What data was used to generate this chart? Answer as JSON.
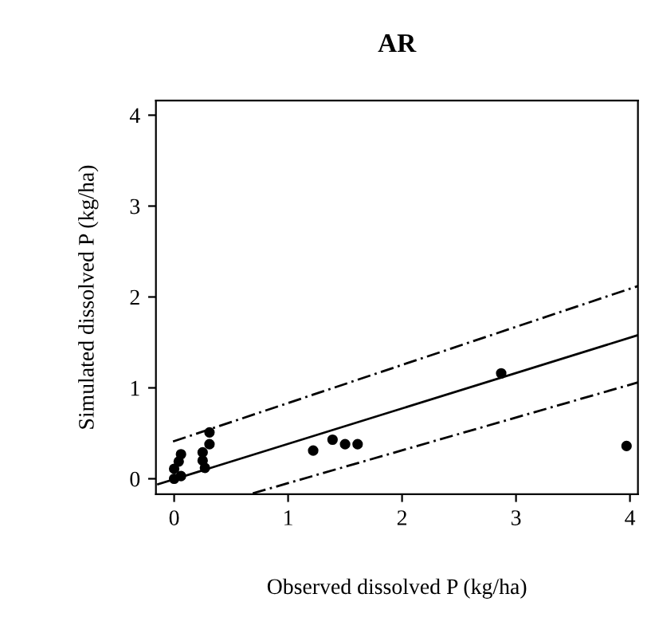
{
  "chart_data": {
    "type": "scatter",
    "title": "AR",
    "xlabel": "Observed dissolved P (kg/ha)",
    "ylabel": "Simulated dissolved P (kg/ha)",
    "xlim": [
      -0.16,
      4.07
    ],
    "ylim": [
      -0.17,
      4.16
    ],
    "xticks": [
      0,
      1,
      2,
      3,
      4
    ],
    "yticks": [
      0,
      1,
      2,
      3,
      4
    ],
    "grid": false,
    "legend": false,
    "marker": "circle",
    "series": [
      {
        "color": "#000000",
        "x": [
          0.0,
          0.06,
          0.0,
          0.04,
          0.06,
          0.31,
          0.31,
          0.25,
          0.25,
          0.27,
          1.22,
          1.39,
          1.5,
          1.61,
          2.87,
          3.97
        ],
        "values": [
          0.0,
          0.03,
          0.11,
          0.19,
          0.27,
          0.51,
          0.38,
          0.29,
          0.2,
          0.12,
          0.31,
          0.43,
          0.38,
          0.38,
          1.16,
          0.36
        ]
      },
      {
        "type": "line",
        "color": "#000000",
        "line_style": "solid",
        "marker": "none",
        "x": [
          -0.14,
          4.07
        ],
        "values": [
          -0.06,
          1.58
        ]
      },
      {
        "type": "line",
        "color": "#000000",
        "line_style": "dashed",
        "marker": "none",
        "x": [
          -0.01,
          4.07
        ],
        "values": [
          0.41,
          2.12
        ]
      },
      {
        "type": "line",
        "color": "#000000",
        "line_style": "dashed",
        "marker": "none",
        "x": [
          0.69,
          4.07
        ],
        "values": [
          -0.16,
          1.06
        ]
      }
    ]
  }
}
